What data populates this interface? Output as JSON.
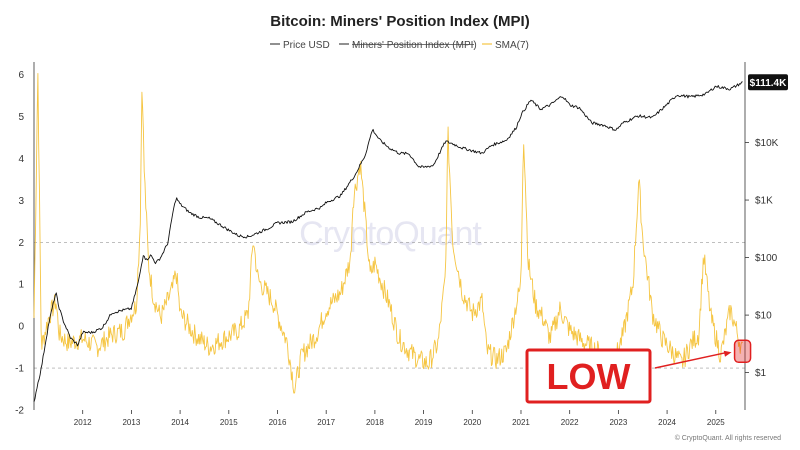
{
  "chart_data": {
    "type": "line",
    "title": "Bitcoin: Miners' Position Index (MPI)",
    "legend": [
      {
        "name": "Price USD",
        "color": "#222222",
        "hidden": false
      },
      {
        "name": "Miners' Position Index (MPI)",
        "color": "#222222",
        "hidden": true
      },
      {
        "name": "SMA(7)",
        "color": "#f5c542",
        "hidden": false
      }
    ],
    "x_ticks": [
      "2012",
      "2013",
      "2014",
      "2015",
      "2016",
      "2017",
      "2018",
      "2019",
      "2020",
      "2021",
      "2022",
      "2023",
      "2024",
      "2025"
    ],
    "x_tick_values": [
      2012,
      2013,
      2014,
      2015,
      2016,
      2017,
      2018,
      2019,
      2020,
      2021,
      2022,
      2023,
      2024,
      2025
    ],
    "xlim": [
      2011.0,
      2025.6
    ],
    "left_axis": {
      "ticks": [
        "6",
        "5",
        "4",
        "3",
        "2",
        "1",
        "0",
        "-1",
        "-2"
      ],
      "tick_values": [
        6,
        5,
        4,
        3,
        2,
        1,
        0,
        -1,
        -2
      ],
      "ylim": [
        -2,
        6.3
      ]
    },
    "right_axis": {
      "ticks": [
        "$10K",
        "$1K",
        "$100",
        "$10",
        "$1"
      ],
      "tick_values": [
        10000,
        1000,
        100,
        10,
        1
      ],
      "scale": "log",
      "ylim_log10": [
        -0.65,
        5.4
      ]
    },
    "reference_lines": [
      {
        "axis": "left",
        "value": 2,
        "style": "dashed"
      },
      {
        "axis": "left",
        "value": -1,
        "style": "dashed"
      }
    ],
    "series": [
      {
        "name": "Price USD",
        "axis": "right",
        "x": [
          2011.0,
          2011.05,
          2011.15,
          2011.3,
          2011.45,
          2011.5,
          2011.6,
          2011.75,
          2011.9,
          2012.0,
          2012.2,
          2012.4,
          2012.6,
          2012.8,
          2013.0,
          2013.15,
          2013.25,
          2013.3,
          2013.4,
          2013.5,
          2013.6,
          2013.75,
          2013.85,
          2013.92,
          2014.0,
          2014.2,
          2014.4,
          2014.6,
          2014.8,
          2015.0,
          2015.2,
          2015.4,
          2015.6,
          2015.8,
          2016.0,
          2016.3,
          2016.6,
          2016.9,
          2017.0,
          2017.3,
          2017.6,
          2017.8,
          2017.95,
          2018.1,
          2018.3,
          2018.5,
          2018.7,
          2018.9,
          2019.0,
          2019.2,
          2019.45,
          2019.6,
          2019.8,
          2020.0,
          2020.2,
          2020.4,
          2020.7,
          2020.9,
          2021.0,
          2021.2,
          2021.4,
          2021.6,
          2021.85,
          2022.0,
          2022.2,
          2022.45,
          2022.7,
          2022.95,
          2023.1,
          2023.4,
          2023.7,
          2023.95,
          2024.2,
          2024.5,
          2024.8,
          2025.0,
          2025.3,
          2025.55
        ],
        "values": [
          0.3,
          0.5,
          1.2,
          7,
          25,
          15,
          8,
          4,
          3,
          5,
          5,
          6,
          11,
          12,
          13,
          40,
          120,
          90,
          110,
          80,
          100,
          180,
          600,
          1100,
          850,
          600,
          500,
          480,
          380,
          300,
          240,
          230,
          270,
          320,
          400,
          420,
          620,
          750,
          900,
          1200,
          2800,
          6000,
          17000,
          11000,
          8000,
          6500,
          6400,
          3800,
          3700,
          4000,
          10500,
          9500,
          8000,
          7200,
          6500,
          9000,
          11000,
          18000,
          30000,
          55000,
          38000,
          45000,
          65000,
          45000,
          40000,
          22000,
          20000,
          16500,
          22000,
          29000,
          27000,
          42000,
          67000,
          62000,
          70000,
          95000,
          85000,
          111400
        ]
      },
      {
        "name": "SMA(7)",
        "axis": "left",
        "x": [
          2011.0,
          2011.08,
          2011.15,
          2011.3,
          2011.45,
          2011.52,
          2011.7,
          2012.0,
          2012.3,
          2012.6,
          2012.85,
          2012.95,
          2013.1,
          2013.18,
          2013.22,
          2013.26,
          2013.35,
          2013.45,
          2013.6,
          2013.85,
          2013.92,
          2014.0,
          2014.3,
          2014.6,
          2014.9,
          2015.2,
          2015.4,
          2015.5,
          2015.6,
          2015.9,
          2016.2,
          2016.35,
          2016.5,
          2016.8,
          2017.0,
          2017.3,
          2017.5,
          2017.55,
          2017.7,
          2017.8,
          2017.9,
          2018.0,
          2018.3,
          2018.5,
          2018.7,
          2018.9,
          2019.1,
          2019.3,
          2019.45,
          2019.5,
          2019.6,
          2019.8,
          2020.0,
          2020.2,
          2020.3,
          2020.5,
          2020.7,
          2020.9,
          2021.0,
          2021.05,
          2021.15,
          2021.3,
          2021.45,
          2021.6,
          2021.8,
          2022.0,
          2022.3,
          2022.6,
          2022.9,
          2023.1,
          2023.3,
          2023.42,
          2023.5,
          2023.7,
          2023.9,
          2024.1,
          2024.3,
          2024.5,
          2024.65,
          2024.75,
          2024.9,
          2025.1,
          2025.3,
          2025.55
        ],
        "values": [
          0.2,
          6.1,
          -0.5,
          0.2,
          0.6,
          -0.2,
          -0.4,
          -0.3,
          -0.5,
          -0.2,
          -0.1,
          0.2,
          0.5,
          2.4,
          6.1,
          3.8,
          1.5,
          0.7,
          0.2,
          0.9,
          1.3,
          0.3,
          -0.2,
          -0.5,
          -0.3,
          -0.1,
          0.3,
          2.1,
          1.1,
          0.6,
          -0.4,
          -1.5,
          -0.7,
          -0.2,
          0.4,
          0.8,
          1.6,
          3.0,
          3.9,
          2.6,
          1.2,
          1.5,
          0.5,
          -0.3,
          -0.6,
          -0.8,
          -0.9,
          -0.4,
          1.2,
          4.6,
          2.0,
          0.8,
          0.3,
          0.6,
          -0.6,
          -0.8,
          -0.6,
          0.5,
          1.0,
          4.7,
          1.5,
          0.5,
          0.2,
          -0.3,
          0.4,
          -0.1,
          -0.4,
          -0.6,
          -0.9,
          -0.2,
          1.0,
          3.5,
          2.1,
          0.3,
          -0.3,
          -0.6,
          -0.9,
          -0.4,
          -0.2,
          1.7,
          0.2,
          -0.7,
          0.4,
          -0.6
        ]
      }
    ],
    "last_price_label": "$111.4K",
    "watermark": "CryptoQuant",
    "annotation": {
      "label": "LOW",
      "target_x": 2025.55,
      "target_left_value": -0.6
    },
    "credit": "© CryptoQuant. All rights reserved"
  }
}
